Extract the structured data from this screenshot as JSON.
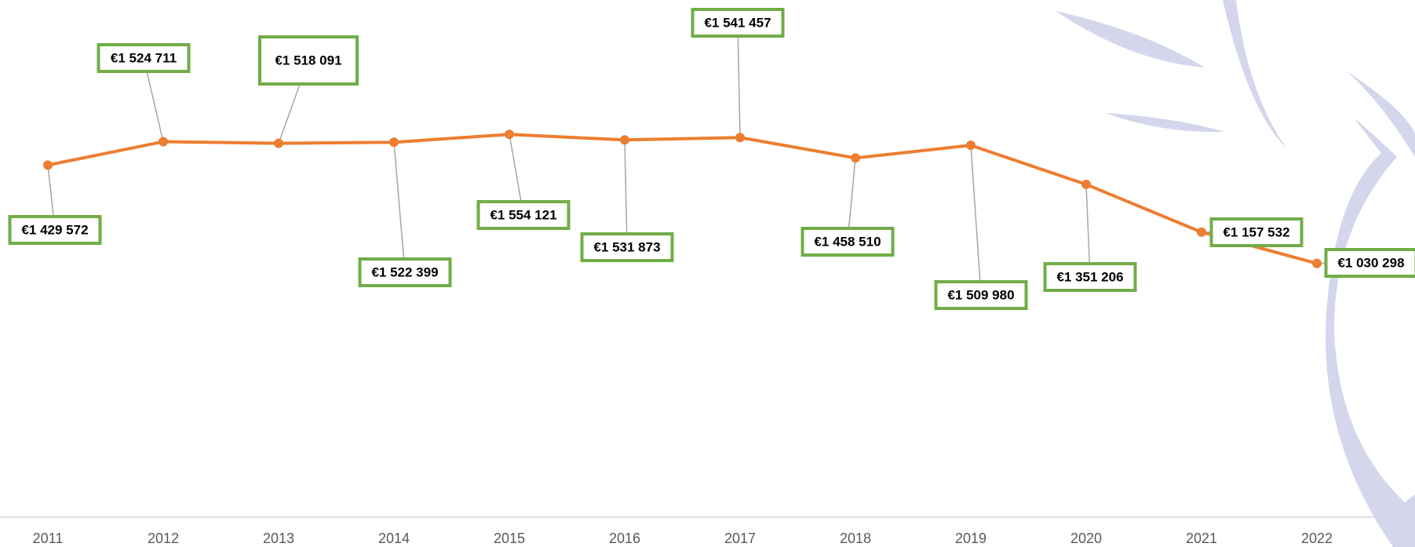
{
  "chart_data": {
    "type": "line",
    "categories": [
      "2011",
      "2012",
      "2013",
      "2014",
      "2015",
      "2016",
      "2017",
      "2018",
      "2019",
      "2020",
      "2021",
      "2022"
    ],
    "series": [
      {
        "color": "#ed7d31",
        "values": [
          1429572,
          1524711,
          1518091,
          1522399,
          1554121,
          1531873,
          1541457,
          1458510,
          1509980,
          1351206,
          1157532,
          1030298
        ],
        "value_labels": [
          "€1 429 572",
          "€1 524 711",
          "€1 518 091",
          "€1 522 399",
          "€1 554 121",
          "€1 531 873",
          "€1 541 457",
          "€1 458 510",
          "€1 509 980",
          "€1 351 206",
          "€1 157 532",
          "€1 030 298"
        ]
      }
    ],
    "ylim": [
      0,
      2100000
    ],
    "label_border_color": "#70ad47"
  }
}
